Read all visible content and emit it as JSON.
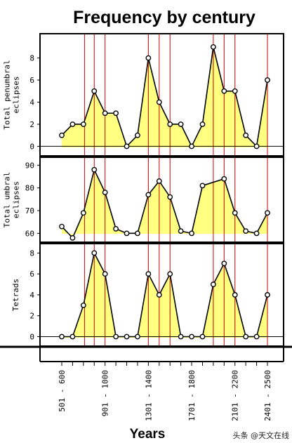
{
  "chart_data": {
    "type": "line",
    "title": "Frequency by century",
    "xlabel": "Years",
    "x": [
      1,
      2,
      3,
      4,
      5,
      6,
      7,
      8,
      9,
      10,
      11,
      12,
      13,
      14,
      15,
      16,
      17,
      18,
      19,
      20
    ],
    "category_labels": [
      {
        "at": 1,
        "label": "501 - 600"
      },
      {
        "at": 5,
        "label": "901 - 1000"
      },
      {
        "at": 9,
        "label": "1301 - 1400"
      },
      {
        "at": 13,
        "label": "1701 - 1800"
      },
      {
        "at": 17,
        "label": "2101 - 2200"
      },
      {
        "at": 20,
        "label": "2401 - 2500"
      }
    ],
    "highlight_x": [
      3.1,
      4,
      5,
      9,
      10,
      11,
      15,
      16,
      17,
      20
    ],
    "fill_color": "#ffff80",
    "line_color": "#000000",
    "marker_fill": "#ffffff",
    "highlight_color": "#cc0000",
    "panels": [
      {
        "ylabel": "Total penumbral eclipses",
        "ylabel_lines": [
          "Total penumbral",
          "eclipses"
        ],
        "yticks": [
          0,
          2,
          4,
          6,
          8
        ],
        "ylim": [
          -0.1,
          10.2
        ],
        "series": [
          {
            "x": [
              1,
              2,
              3,
              4,
              5,
              6,
              7,
              8,
              9,
              10,
              11,
              12,
              13,
              14,
              15,
              16,
              17,
              18,
              19,
              20
            ],
            "values": [
              1,
              2,
              2,
              5,
              3,
              3,
              0,
              1,
              8,
              4,
              2,
              2,
              0,
              2,
              9,
              5,
              5,
              1,
              0,
              6
            ]
          }
        ]
      },
      {
        "ylabel": "Total umbral eclipses",
        "ylabel_lines": [
          "Total umbral",
          "eclipses"
        ],
        "yticks": [
          60,
          70,
          80,
          90
        ],
        "ylim": [
          59.8,
          93.5
        ],
        "series": [
          {
            "x": [
              1,
              2,
              3,
              4,
              5,
              6,
              7,
              8,
              9,
              10,
              11,
              12,
              13,
              14,
              16,
              17,
              18,
              19,
              20
            ],
            "values": [
              63,
              58,
              69,
              88,
              78,
              62,
              60,
              60,
              77,
              83,
              76,
              61,
              60,
              81,
              84,
              69,
              61,
              60,
              69
            ]
          }
        ]
      },
      {
        "ylabel": "Tetrads",
        "ylabel_lines": [
          "Tetrads"
        ],
        "yticks": [
          0,
          2,
          4,
          6,
          8
        ],
        "ylim": [
          -0.1,
          8.9
        ],
        "series": [
          {
            "x": [
              1,
              2,
              3,
              4,
              5,
              6,
              7,
              8,
              9,
              10,
              11,
              12,
              13,
              14,
              15,
              16,
              17,
              18,
              19,
              20
            ],
            "values": [
              0,
              0,
              3,
              8,
              6,
              0,
              0,
              0,
              6,
              4,
              6,
              0,
              0,
              0,
              5,
              7,
              4,
              0,
              0,
              4
            ]
          }
        ]
      }
    ]
  },
  "watermark": "头条 @天文在线"
}
